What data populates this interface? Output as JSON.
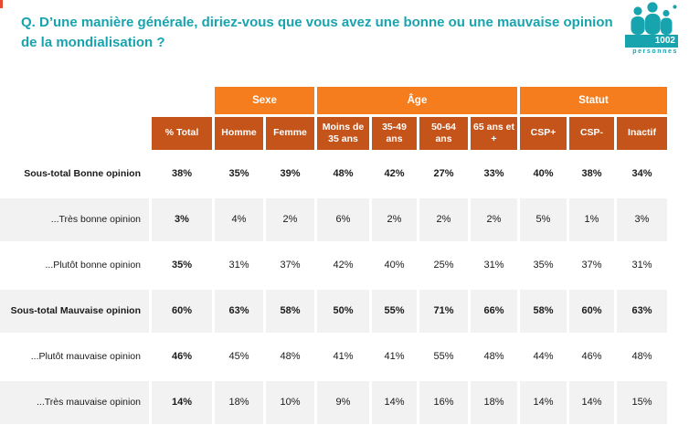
{
  "header": {
    "question": "Q. D’une manière générale, diriez-vous que vous avez une bonne ou une mauvaise opinion de la mondialisation ?"
  },
  "sample_badge": {
    "count": "1002",
    "label": "personnes",
    "icon": "people-group-icon"
  },
  "colors": {
    "teal": "#18a4af",
    "orange_bright": "#f67d1e",
    "orange_dark": "#c5541b",
    "row_alt": "#f2f2f2",
    "corner_mark_red": "#e5492f",
    "header_text": "#ffffff",
    "body_text": "#1a1a1a"
  },
  "table": {
    "groups": [
      {
        "label": "Sexe",
        "span": 2
      },
      {
        "label": "Âge",
        "span": 4
      },
      {
        "label": "Statut",
        "span": 3
      }
    ],
    "columns": [
      "% Total",
      "Homme",
      "Femme",
      "Moins de 35 ans",
      "35-49 ans",
      "50-64 ans",
      "65 ans et +",
      "CSP+",
      "CSP-",
      "Inactif"
    ],
    "rows": [
      {
        "label": "Sous-total Bonne opinion",
        "emphasis": true,
        "values": [
          "38%",
          "35%",
          "39%",
          "48%",
          "42%",
          "27%",
          "33%",
          "40%",
          "38%",
          "34%"
        ]
      },
      {
        "label": "...Très bonne opinion",
        "emphasis": false,
        "values": [
          "3%",
          "4%",
          "2%",
          "6%",
          "2%",
          "2%",
          "2%",
          "5%",
          "1%",
          "3%"
        ]
      },
      {
        "label": "...Plutôt bonne opinion",
        "emphasis": false,
        "values": [
          "35%",
          "31%",
          "37%",
          "42%",
          "40%",
          "25%",
          "31%",
          "35%",
          "37%",
          "31%"
        ]
      },
      {
        "label": "Sous-total Mauvaise opinion",
        "emphasis": true,
        "values": [
          "60%",
          "63%",
          "58%",
          "50%",
          "55%",
          "71%",
          "66%",
          "58%",
          "60%",
          "63%"
        ]
      },
      {
        "label": "...Plutôt mauvaise opinion",
        "emphasis": false,
        "values": [
          "46%",
          "45%",
          "48%",
          "41%",
          "41%",
          "55%",
          "48%",
          "44%",
          "46%",
          "48%"
        ]
      },
      {
        "label": "...Très mauvaise opinion",
        "emphasis": false,
        "values": [
          "14%",
          "18%",
          "10%",
          "9%",
          "14%",
          "16%",
          "18%",
          "14%",
          "14%",
          "15%"
        ]
      }
    ]
  }
}
